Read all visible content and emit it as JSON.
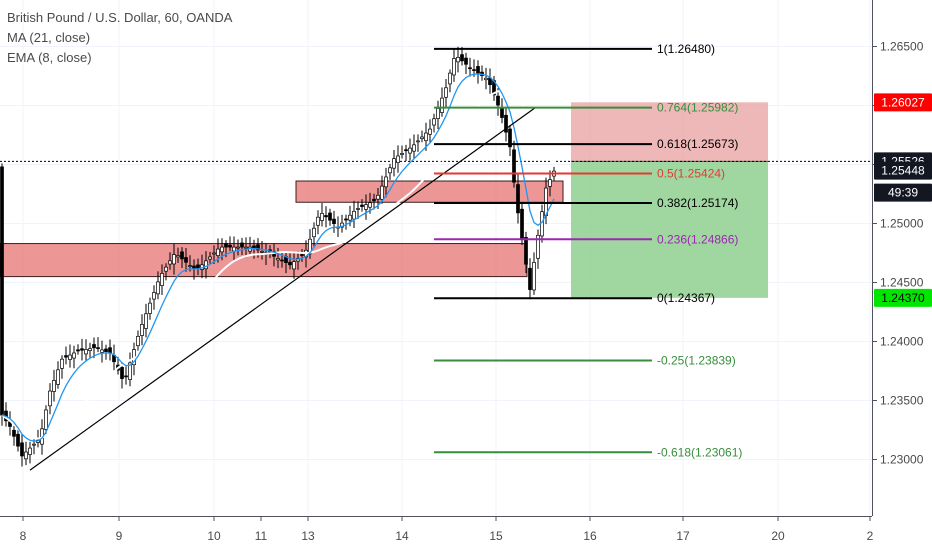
{
  "chart_data": {
    "type": "candlestick",
    "title": "British Pound / U.S. Dollar, 60, OANDA",
    "indicators": [
      "MA (21, close)",
      "EMA (8, close)"
    ],
    "y_ticks": [
      "1.26500",
      "1.26000",
      "1.25500",
      "1.25000",
      "1.24500",
      "1.24000",
      "1.23500",
      "1.23000"
    ],
    "y_tick_values": [
      1.265,
      1.26,
      1.255,
      1.25,
      1.245,
      1.24,
      1.235,
      1.23
    ],
    "x_ticks": [
      "8",
      "9",
      "10",
      "11",
      "13",
      "14",
      "15",
      "16",
      "17",
      "20",
      "2"
    ],
    "price_labels": [
      {
        "text": "1.26027",
        "value": 1.26027,
        "color": "#ff0000"
      },
      {
        "text": "1.25526",
        "value": 1.25526,
        "color": "#131722"
      },
      {
        "text": "1.25448",
        "value": 1.25448,
        "color": "#131722"
      },
      {
        "text": "49:39",
        "value": 1.25448,
        "color": "#131722"
      },
      {
        "text": "1.24370",
        "value": 1.2437,
        "color": "#00e600"
      }
    ],
    "fib_levels": [
      {
        "label": "1(1.26480)",
        "value": 1.2648,
        "color": "#000000"
      },
      {
        "label": "0.764(1.25982)",
        "value": 1.25982,
        "color": "#388e3c"
      },
      {
        "label": "0.618(1.25673)",
        "value": 1.25673,
        "color": "#000000"
      },
      {
        "label": "0.5(1.25424)",
        "value": 1.25424,
        "color": "#e53935"
      },
      {
        "label": "0.382(1.25174)",
        "value": 1.25174,
        "color": "#000000"
      },
      {
        "label": "0.236(1.24866)",
        "value": 1.24866,
        "color": "#9c27b0"
      },
      {
        "label": "0(1.24367)",
        "value": 1.24367,
        "color": "#000000"
      },
      {
        "label": "-0.25(1.23839)",
        "value": 1.23839,
        "color": "#388e3c"
      },
      {
        "label": "-0.618(1.23061)",
        "value": 1.23061,
        "color": "#388e3c"
      }
    ],
    "support_zones": [
      {
        "from": 1.2455,
        "to": 1.2483
      },
      {
        "from": 1.2518,
        "to": 1.2536
      }
    ],
    "position": {
      "entry": 1.25526,
      "stop": 1.26027,
      "target": 1.2437
    },
    "trendline": {
      "from": 1.2291,
      "to": 1.2598
    },
    "colors": {
      "up": "#ffffff",
      "down": "#000000",
      "ma": "#ffffff",
      "ema": "#2196f3",
      "zone": "#e57373"
    }
  }
}
